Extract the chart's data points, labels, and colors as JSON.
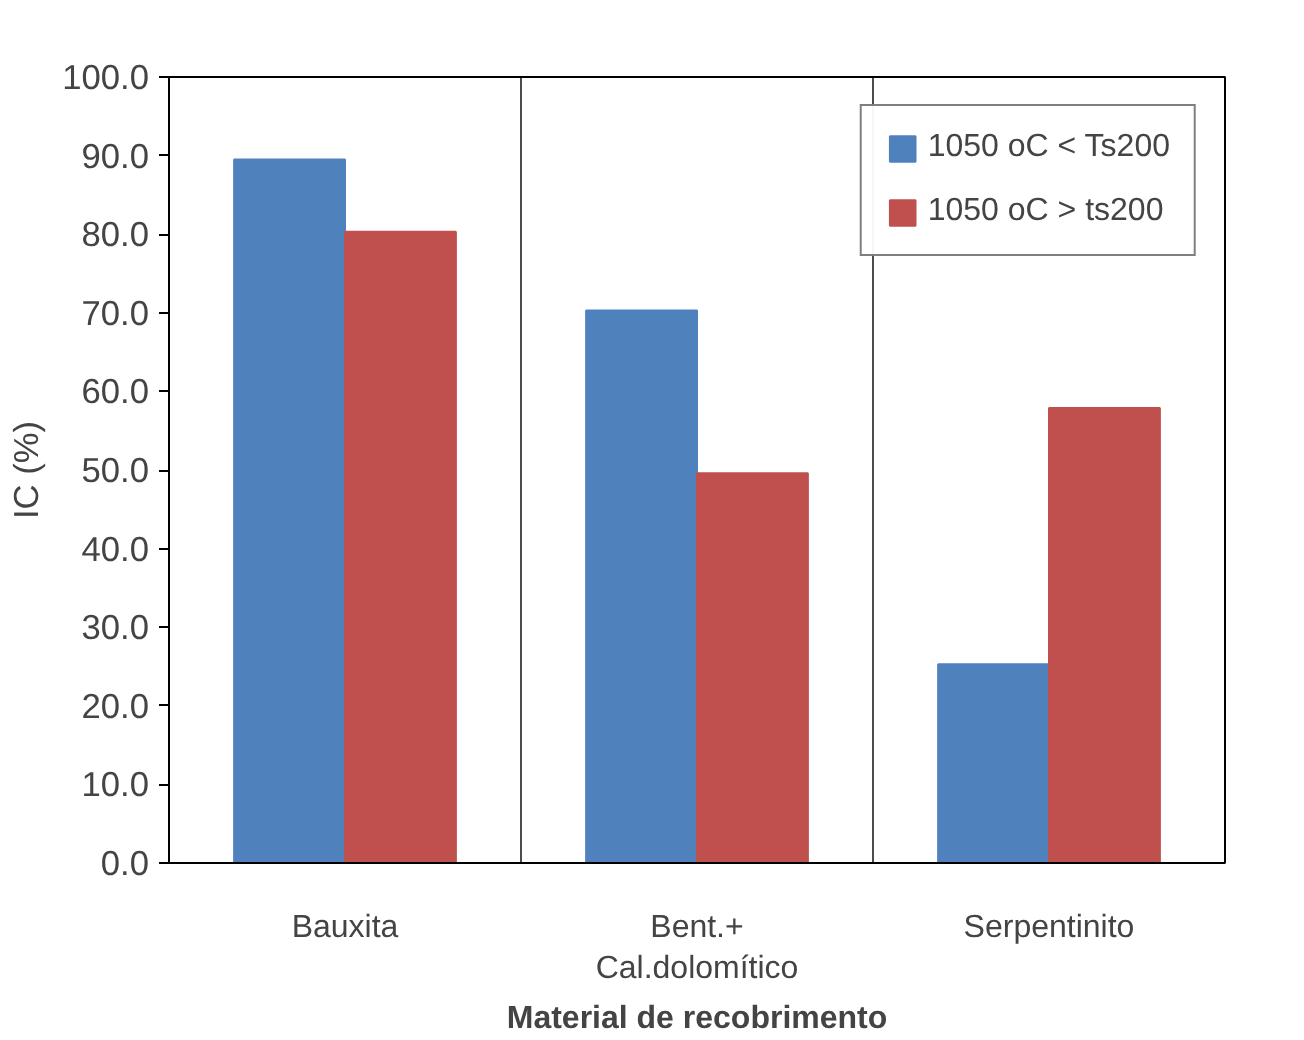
{
  "chart_data": {
    "type": "bar",
    "xlabel": "Material de recobrimento",
    "ylabel": "IC (%)",
    "categories": [
      "Bauxita",
      "Bent.+\nCal.dolomítico",
      "Serpentinito"
    ],
    "series": [
      {
        "name": "1050 oC < Ts200",
        "color": "#4f81bd",
        "values": [
          89.5,
          70.3,
          25.3
        ]
      },
      {
        "name": "1050 oC > ts200",
        "color": "#c0504d",
        "values": [
          80.3,
          49.6,
          57.9
        ]
      }
    ],
    "ylim": [
      0,
      100
    ],
    "yticks": [
      {
        "value": 0,
        "label": "0.0"
      },
      {
        "value": 10,
        "label": "10.0"
      },
      {
        "value": 20,
        "label": "20.0"
      },
      {
        "value": 30,
        "label": "30.0"
      },
      {
        "value": 40,
        "label": "40.0"
      },
      {
        "value": 50,
        "label": "50.0"
      },
      {
        "value": 60,
        "label": "60.0"
      },
      {
        "value": 70,
        "label": "70.0"
      },
      {
        "value": 80,
        "label": "80.0"
      },
      {
        "value": 90,
        "label": "90.0"
      },
      {
        "value": 100,
        "label": "100.0"
      }
    ],
    "grid": "x",
    "legend": "top right"
  }
}
